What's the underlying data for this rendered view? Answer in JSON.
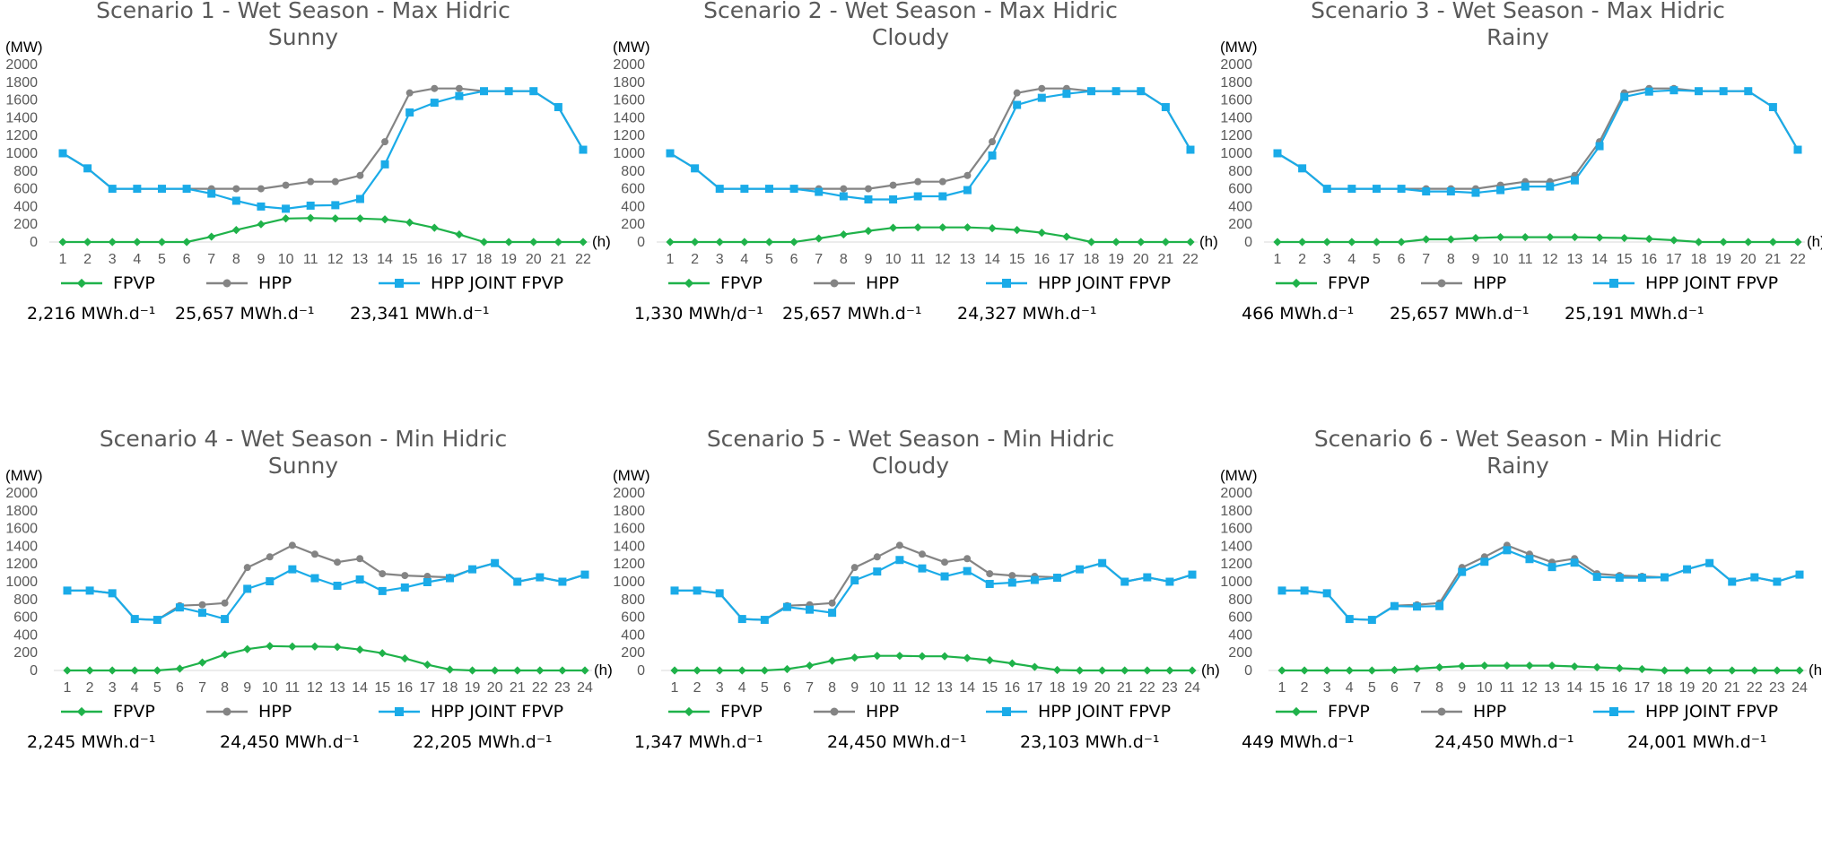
{
  "chart_data": [
    {
      "type": "line",
      "title": "Scenario 1 - Wet Season - Max Hidric",
      "subtitle": "Sunny",
      "ylabel": "(MW)",
      "xlabel": "(h)",
      "ylim": [
        0,
        2000
      ],
      "yticks": [
        0,
        200,
        400,
        600,
        800,
        1000,
        1200,
        1400,
        1600,
        1800,
        2000
      ],
      "x": [
        1,
        2,
        3,
        4,
        5,
        6,
        7,
        8,
        9,
        10,
        11,
        12,
        13,
        14,
        15,
        16,
        17,
        18,
        19,
        20,
        21,
        22
      ],
      "series": [
        {
          "name": "FPVP",
          "color": "#1fb24a",
          "marker": "diamond",
          "total": "2,216 MWh.d⁻¹",
          "values": [
            0,
            0,
            0,
            0,
            0,
            0,
            60,
            135,
            200,
            265,
            270,
            265,
            265,
            255,
            220,
            160,
            85,
            0,
            0,
            0,
            0,
            0
          ]
        },
        {
          "name": "HPP",
          "color": "#848484",
          "marker": "circle",
          "total": "25,657 MWh.d⁻¹",
          "values": [
            1000,
            830,
            600,
            600,
            600,
            600,
            600,
            600,
            600,
            640,
            680,
            680,
            750,
            1130,
            1680,
            1730,
            1730,
            1700,
            1700,
            1700,
            1520,
            1040
          ]
        },
        {
          "name": "HPP JOINT FPVP",
          "color": "#1aabe8",
          "marker": "square",
          "total": "23,341 MWh.d⁻¹",
          "values": [
            1000,
            830,
            600,
            600,
            600,
            600,
            545,
            465,
            400,
            375,
            410,
            415,
            485,
            875,
            1460,
            1570,
            1645,
            1700,
            1700,
            1700,
            1520,
            1040
          ]
        }
      ]
    },
    {
      "type": "line",
      "title": "Scenario 2 - Wet Season - Max Hidric",
      "subtitle": "Cloudy",
      "ylabel": "(MW)",
      "xlabel": "(h)",
      "ylim": [
        0,
        2000
      ],
      "yticks": [
        0,
        200,
        400,
        600,
        800,
        1000,
        1200,
        1400,
        1600,
        1800,
        2000
      ],
      "x": [
        1,
        2,
        3,
        4,
        5,
        6,
        7,
        8,
        9,
        10,
        11,
        12,
        13,
        14,
        15,
        16,
        17,
        18,
        19,
        20,
        21,
        22
      ],
      "series": [
        {
          "name": "FPVP",
          "color": "#1fb24a",
          "marker": "diamond",
          "total": "1,330 MWh/d⁻¹",
          "values": [
            0,
            0,
            0,
            0,
            0,
            0,
            40,
            85,
            125,
            160,
            165,
            165,
            165,
            155,
            135,
            105,
            60,
            0,
            0,
            0,
            0,
            0
          ]
        },
        {
          "name": "HPP",
          "color": "#848484",
          "marker": "circle",
          "total": "25,657 MWh.d⁻¹",
          "values": [
            1000,
            830,
            600,
            600,
            600,
            600,
            600,
            600,
            600,
            640,
            680,
            680,
            750,
            1130,
            1680,
            1730,
            1730,
            1700,
            1700,
            1700,
            1520,
            1040
          ]
        },
        {
          "name": "HPP JOINT FPVP",
          "color": "#1aabe8",
          "marker": "square",
          "total": "24,327 MWh.d⁻¹",
          "values": [
            1000,
            830,
            600,
            600,
            600,
            600,
            565,
            515,
            480,
            480,
            515,
            515,
            585,
            975,
            1545,
            1625,
            1670,
            1700,
            1700,
            1700,
            1520,
            1040
          ]
        }
      ]
    },
    {
      "type": "line",
      "title": "Scenario 3 - Wet Season - Max Hidric",
      "subtitle": "Rainy",
      "ylabel": "(MW)",
      "xlabel": "(h)",
      "ylim": [
        0,
        2000
      ],
      "yticks": [
        0,
        200,
        400,
        600,
        800,
        1000,
        1200,
        1400,
        1600,
        1800,
        2000
      ],
      "x": [
        1,
        2,
        3,
        4,
        5,
        6,
        7,
        8,
        9,
        10,
        11,
        12,
        13,
        14,
        15,
        16,
        17,
        18,
        19,
        20,
        21,
        22
      ],
      "series": [
        {
          "name": "FPVP",
          "color": "#1fb24a",
          "marker": "diamond",
          "total": "466 MWh.d⁻¹",
          "values": [
            0,
            0,
            0,
            0,
            0,
            0,
            30,
            30,
            45,
            55,
            55,
            55,
            55,
            50,
            45,
            35,
            20,
            0,
            0,
            0,
            0,
            0
          ]
        },
        {
          "name": "HPP",
          "color": "#848484",
          "marker": "circle",
          "total": "25,657 MWh.d⁻¹",
          "values": [
            1000,
            830,
            600,
            600,
            600,
            600,
            600,
            600,
            600,
            640,
            680,
            680,
            750,
            1130,
            1680,
            1730,
            1730,
            1700,
            1700,
            1700,
            1520,
            1040
          ]
        },
        {
          "name": "HPP JOINT FPVP",
          "color": "#1aabe8",
          "marker": "square",
          "total": "25,191 MWh.d⁻¹",
          "values": [
            1000,
            830,
            600,
            600,
            600,
            600,
            570,
            570,
            555,
            585,
            625,
            625,
            695,
            1080,
            1635,
            1695,
            1710,
            1700,
            1700,
            1700,
            1520,
            1040
          ]
        }
      ]
    },
    {
      "type": "line",
      "title": "Scenario 4 - Wet Season - Min Hidric",
      "subtitle": "Sunny",
      "ylabel": "(MW)",
      "xlabel": "(h)",
      "ylim": [
        0,
        2000
      ],
      "yticks": [
        0,
        200,
        400,
        600,
        800,
        1000,
        1200,
        1400,
        1600,
        1800,
        2000
      ],
      "x": [
        1,
        2,
        3,
        4,
        5,
        6,
        7,
        8,
        9,
        10,
        11,
        12,
        13,
        14,
        15,
        16,
        17,
        18,
        19,
        20,
        21,
        22,
        23,
        24
      ],
      "series": [
        {
          "name": "FPVP",
          "color": "#1fb24a",
          "marker": "diamond",
          "total": "2,245 MWh.d⁻¹",
          "values": [
            0,
            0,
            0,
            0,
            0,
            20,
            90,
            180,
            240,
            275,
            270,
            270,
            265,
            235,
            195,
            135,
            65,
            10,
            0,
            0,
            0,
            0,
            0,
            0
          ]
        },
        {
          "name": "HPP",
          "color": "#848484",
          "marker": "circle",
          "total": "24,450 MWh.d⁻¹",
          "values": [
            900,
            900,
            870,
            580,
            570,
            730,
            740,
            760,
            1160,
            1280,
            1410,
            1310,
            1220,
            1260,
            1090,
            1070,
            1060,
            1050,
            1140,
            1210,
            1000,
            1050,
            1000,
            1080
          ]
        },
        {
          "name": "HPP JOINT FPVP",
          "color": "#1aabe8",
          "marker": "square",
          "total": "22,205 MWh.d⁻¹",
          "values": [
            900,
            900,
            870,
            580,
            570,
            710,
            650,
            580,
            920,
            1005,
            1140,
            1040,
            955,
            1025,
            895,
            935,
            995,
            1040,
            1140,
            1210,
            1000,
            1050,
            1000,
            1080
          ]
        }
      ]
    },
    {
      "type": "line",
      "title": "Scenario 5 - Wet Season - Min Hidric",
      "subtitle": "Cloudy",
      "ylabel": "(MW)",
      "xlabel": "(h)",
      "ylim": [
        0,
        2000
      ],
      "yticks": [
        0,
        200,
        400,
        600,
        800,
        1000,
        1200,
        1400,
        1600,
        1800,
        2000
      ],
      "x": [
        1,
        2,
        3,
        4,
        5,
        6,
        7,
        8,
        9,
        10,
        11,
        12,
        13,
        14,
        15,
        16,
        17,
        18,
        19,
        20,
        21,
        22,
        23,
        24
      ],
      "series": [
        {
          "name": "FPVP",
          "color": "#1fb24a",
          "marker": "diamond",
          "total": "1,347 MWh.d⁻¹",
          "values": [
            0,
            0,
            0,
            0,
            0,
            15,
            55,
            110,
            145,
            165,
            165,
            160,
            160,
            140,
            115,
            80,
            40,
            5,
            0,
            0,
            0,
            0,
            0,
            0
          ]
        },
        {
          "name": "HPP",
          "color": "#848484",
          "marker": "circle",
          "total": "24,450 MWh.d⁻¹",
          "values": [
            900,
            900,
            870,
            580,
            570,
            730,
            740,
            760,
            1160,
            1280,
            1410,
            1310,
            1220,
            1260,
            1090,
            1070,
            1060,
            1050,
            1140,
            1210,
            1000,
            1050,
            1000,
            1080
          ]
        },
        {
          "name": "HPP JOINT FPVP",
          "color": "#1aabe8",
          "marker": "square",
          "total": "23,103 MWh.d⁻¹",
          "values": [
            900,
            900,
            870,
            580,
            570,
            715,
            685,
            650,
            1015,
            1115,
            1245,
            1150,
            1060,
            1120,
            975,
            990,
            1020,
            1045,
            1140,
            1210,
            1000,
            1050,
            1000,
            1080
          ]
        }
      ]
    },
    {
      "type": "line",
      "title": "Scenario 6 - Wet Season - Min Hidric",
      "subtitle": "Rainy",
      "ylabel": "(MW)",
      "xlabel": "(h)",
      "ylim": [
        0,
        2000
      ],
      "yticks": [
        0,
        200,
        400,
        600,
        800,
        1000,
        1200,
        1400,
        1600,
        1800,
        2000
      ],
      "x": [
        1,
        2,
        3,
        4,
        5,
        6,
        7,
        8,
        9,
        10,
        11,
        12,
        13,
        14,
        15,
        16,
        17,
        18,
        19,
        20,
        21,
        22,
        23,
        24
      ],
      "series": [
        {
          "name": "FPVP",
          "color": "#1fb24a",
          "marker": "diamond",
          "total": "449 MWh.d⁻¹",
          "values": [
            0,
            0,
            0,
            0,
            0,
            5,
            20,
            35,
            50,
            55,
            55,
            55,
            55,
            45,
            35,
            25,
            15,
            0,
            0,
            0,
            0,
            0,
            0,
            0
          ]
        },
        {
          "name": "HPP",
          "color": "#848484",
          "marker": "circle",
          "total": "24,450 MWh.d⁻¹",
          "values": [
            900,
            900,
            870,
            580,
            570,
            730,
            740,
            760,
            1160,
            1280,
            1410,
            1310,
            1220,
            1260,
            1090,
            1070,
            1060,
            1050,
            1140,
            1210,
            1000,
            1050,
            1000,
            1080
          ]
        },
        {
          "name": "HPP JOINT FPVP",
          "color": "#1aabe8",
          "marker": "square",
          "total": "24,001 MWh.d⁻¹",
          "values": [
            900,
            900,
            870,
            580,
            570,
            725,
            720,
            725,
            1110,
            1225,
            1355,
            1255,
            1165,
            1215,
            1055,
            1045,
            1045,
            1050,
            1140,
            1210,
            1000,
            1050,
            1000,
            1080
          ]
        }
      ]
    }
  ]
}
